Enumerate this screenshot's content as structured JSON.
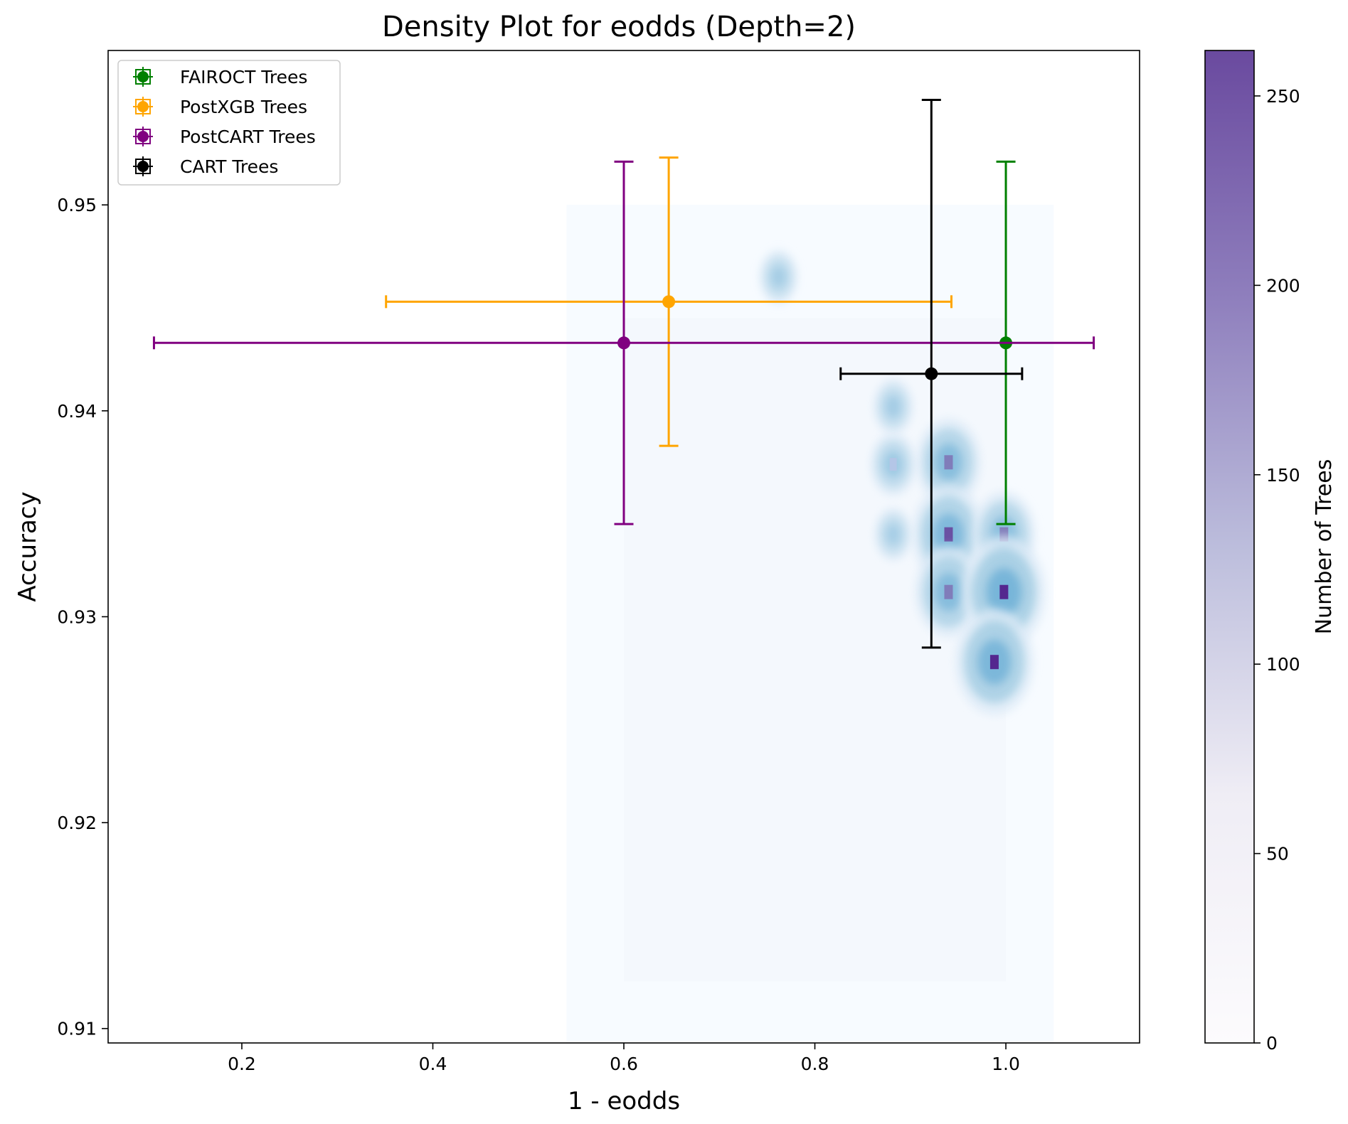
{
  "chart_data": {
    "type": "scatter",
    "title": "Density Plot for eodds (Depth=2)",
    "xlabel": "1 - eodds",
    "ylabel": "Accuracy",
    "xlim": [
      0.06,
      1.14
    ],
    "ylim": [
      0.9093,
      0.9575
    ],
    "x_ticks": [
      0.2,
      0.4,
      0.6,
      0.8,
      1.0
    ],
    "x_tick_labels": [
      "0.2",
      "0.4",
      "0.6",
      "0.8",
      "1.0"
    ],
    "y_ticks": [
      0.91,
      0.92,
      0.93,
      0.94,
      0.95
    ],
    "y_tick_labels": [
      "0.91",
      "0.92",
      "0.93",
      "0.94",
      "0.95"
    ],
    "grid": false,
    "legend_position": "top-left",
    "series": [
      {
        "name": "FAIROCT Trees",
        "color": "#008000",
        "x": 1.0,
        "y": 0.9433,
        "x_err": 0.0,
        "y_err": 0.0088
      },
      {
        "name": "PostXGB Trees",
        "color": "#FFA500",
        "x": 0.647,
        "y": 0.9453,
        "x_err": 0.296,
        "y_err": 0.007
      },
      {
        "name": "PostCART Trees",
        "color": "#800080",
        "x": 0.6,
        "y": 0.9433,
        "x_err": 0.492,
        "y_err": 0.0088
      },
      {
        "name": "CART Trees",
        "color": "#000000",
        "x": 0.922,
        "y": 0.9418,
        "x_err": 0.095,
        "y_err": 0.0133
      }
    ],
    "density": {
      "x_range": [
        0.54,
        1.05
      ],
      "y_range": [
        0.9093,
        0.95
      ],
      "peaks": [
        {
          "x": 0.94,
          "y": 0.9375,
          "count": 160
        },
        {
          "x": 0.94,
          "y": 0.934,
          "count": 200
        },
        {
          "x": 0.94,
          "y": 0.9312,
          "count": 170
        },
        {
          "x": 0.998,
          "y": 0.934,
          "count": 150
        },
        {
          "x": 0.998,
          "y": 0.9312,
          "count": 255
        },
        {
          "x": 0.988,
          "y": 0.9278,
          "count": 230
        },
        {
          "x": 0.882,
          "y": 0.9374,
          "count": 60
        },
        {
          "x": 0.882,
          "y": 0.9402,
          "count": 30
        },
        {
          "x": 0.762,
          "y": 0.9465,
          "count": 25
        },
        {
          "x": 0.882,
          "y": 0.934,
          "count": 20
        }
      ]
    },
    "colorbar": {
      "label": "Number of Trees",
      "range": [
        0,
        262
      ],
      "ticks": [
        0,
        50,
        100,
        150,
        200,
        250
      ],
      "tick_labels": [
        "0",
        "50",
        "100",
        "150",
        "200",
        "250"
      ],
      "color_low": "#FCFBFD",
      "color_high": "#54278F"
    }
  }
}
